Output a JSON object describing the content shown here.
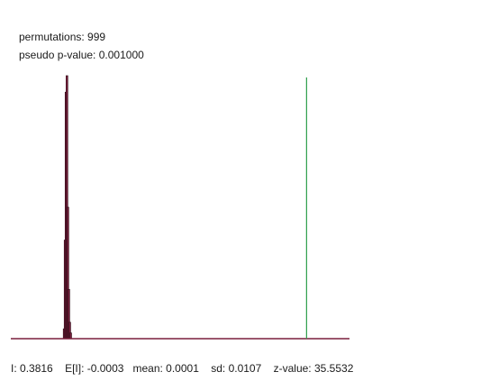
{
  "header": {
    "permutations_label": "permutations:",
    "permutations_value": "999",
    "pvalue_label": "pseudo p-value:",
    "pvalue_value": "0.001000"
  },
  "stats": {
    "i_label": "I:",
    "i_value": "0.3816",
    "ei_label": "E[I]:",
    "ei_value": "-0.0003",
    "mean_label": "mean:",
    "mean_value": "0.0001",
    "sd_label": "sd:",
    "sd_value": "0.0107",
    "z_label": "z-value:",
    "z_value": "35.5532"
  },
  "colors": {
    "histogram": "#7a1f3d",
    "histogram_outline": "#2a0a14",
    "baseline": "#7a1f3d",
    "observed_line": "#2e9e4a"
  },
  "chart_data": {
    "type": "bar",
    "title": "",
    "xlabel": "",
    "ylabel": "",
    "xlim": [
      -0.09,
      0.45
    ],
    "bins": [
      {
        "x": -0.005,
        "count": 12
      },
      {
        "x": -0.0035,
        "count": 120
      },
      {
        "x": -0.002,
        "count": 300
      },
      {
        "x": -0.0005,
        "count": 320
      },
      {
        "x": 0.001,
        "count": 160
      },
      {
        "x": 0.0025,
        "count": 60
      },
      {
        "x": 0.004,
        "count": 20
      },
      {
        "x": 0.0055,
        "count": 7
      }
    ],
    "observed_value": 0.3816,
    "grid": false,
    "legend": "none"
  }
}
